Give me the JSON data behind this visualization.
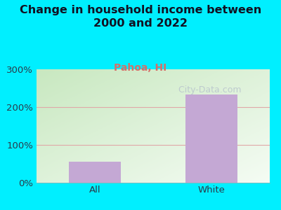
{
  "title": "Change in household income between\n2000 and 2022",
  "subtitle": "Pahoa, HI",
  "categories": [
    "All",
    "White"
  ],
  "values": [
    55,
    233
  ],
  "bar_color": "#c4a8d4",
  "title_fontsize": 11.5,
  "subtitle_fontsize": 10,
  "subtitle_color": "#d4706a",
  "tick_label_fontsize": 9.5,
  "ylim": [
    0,
    300
  ],
  "yticks": [
    0,
    100,
    200,
    300
  ],
  "ytick_labels": [
    "0%",
    "100%",
    "200%",
    "300%"
  ],
  "background_outer": "#00efff",
  "plot_bg_topleft": "#c8e8c0",
  "plot_bg_bottomright": "#f0f8ee",
  "plot_bg_white_corner": "#f8fff8",
  "grid_color": "#e0a8a8",
  "watermark": "  City-Data.com",
  "watermark_color": "#b8c4cc",
  "watermark_fontsize": 9,
  "title_color": "#111122",
  "axis_label_color": "#2a3a4a"
}
